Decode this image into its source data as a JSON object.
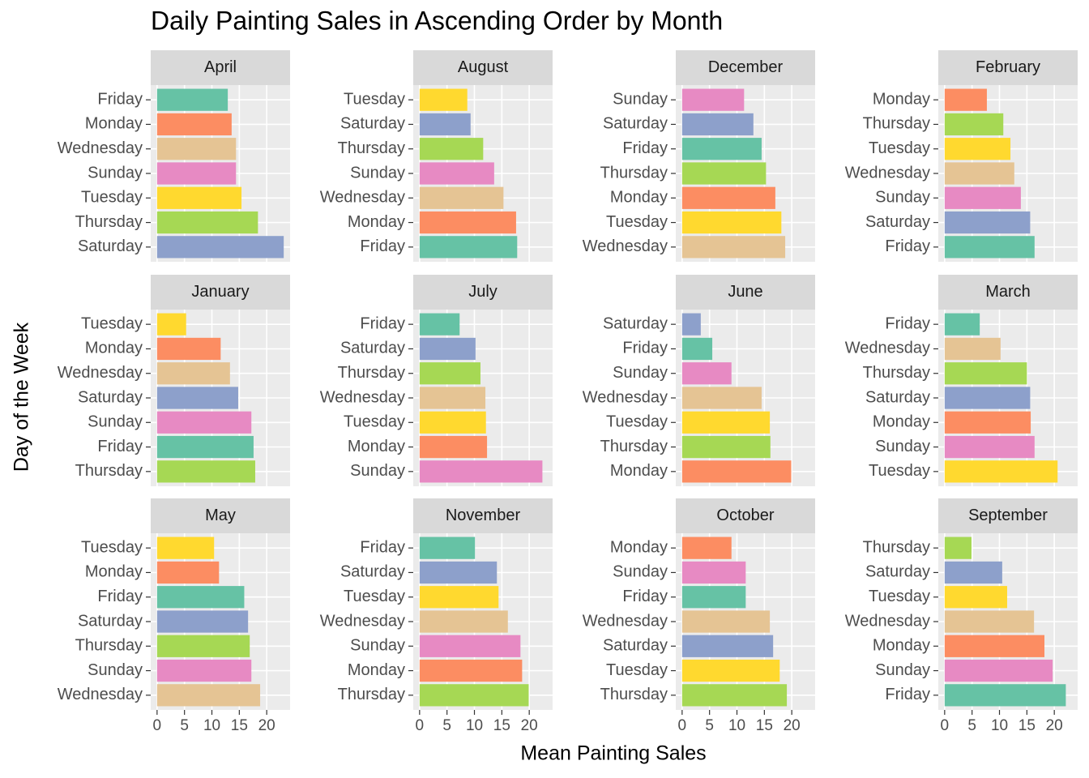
{
  "chart_data": {
    "type": "bar",
    "title": "Daily Painting Sales in Ascending Order by Month",
    "xlabel": "Mean Painting Sales",
    "ylabel": "Day of the Week",
    "xlim": [
      -1.16,
      24.26
    ],
    "xticks": [
      0,
      5,
      10,
      15,
      20
    ],
    "grid": true,
    "facets": [
      {
        "title": "April",
        "categories": [
          "Friday",
          "Monday",
          "Wednesday",
          "Sunday",
          "Tuesday",
          "Thursday",
          "Saturday"
        ],
        "values": [
          12.9,
          13.6,
          14.4,
          14.4,
          15.4,
          18.4,
          23.1
        ],
        "colors": [
          "#66c2a5",
          "#fc8d62",
          "#e5c494",
          "#e78ac3",
          "#ffd92f",
          "#a6d854",
          "#8da0cb"
        ]
      },
      {
        "title": "August",
        "categories": [
          "Tuesday",
          "Saturday",
          "Thursday",
          "Sunday",
          "Wednesday",
          "Monday",
          "Friday"
        ],
        "values": [
          8.7,
          9.3,
          11.6,
          13.6,
          15.3,
          17.6,
          17.8
        ],
        "colors": [
          "#ffd92f",
          "#8da0cb",
          "#a6d854",
          "#e78ac3",
          "#e5c494",
          "#fc8d62",
          "#66c2a5"
        ]
      },
      {
        "title": "December",
        "categories": [
          "Sunday",
          "Saturday",
          "Friday",
          "Thursday",
          "Monday",
          "Tuesday",
          "Wednesday"
        ],
        "values": [
          11.3,
          13.0,
          14.5,
          15.3,
          17.0,
          18.1,
          18.8
        ],
        "colors": [
          "#e78ac3",
          "#8da0cb",
          "#66c2a5",
          "#a6d854",
          "#fc8d62",
          "#ffd92f",
          "#e5c494"
        ]
      },
      {
        "title": "February",
        "categories": [
          "Monday",
          "Thursday",
          "Tuesday",
          "Wednesday",
          "Sunday",
          "Saturday",
          "Friday"
        ],
        "values": [
          7.7,
          10.7,
          12.0,
          12.7,
          13.9,
          15.6,
          16.4
        ],
        "colors": [
          "#fc8d62",
          "#a6d854",
          "#ffd92f",
          "#e5c494",
          "#e78ac3",
          "#8da0cb",
          "#66c2a5"
        ]
      },
      {
        "title": "January",
        "categories": [
          "Tuesday",
          "Monday",
          "Wednesday",
          "Saturday",
          "Sunday",
          "Friday",
          "Thursday"
        ],
        "values": [
          5.3,
          11.6,
          13.3,
          14.8,
          17.2,
          17.6,
          17.9
        ],
        "colors": [
          "#ffd92f",
          "#fc8d62",
          "#e5c494",
          "#8da0cb",
          "#e78ac3",
          "#66c2a5",
          "#a6d854"
        ]
      },
      {
        "title": "July",
        "categories": [
          "Friday",
          "Saturday",
          "Thursday",
          "Wednesday",
          "Tuesday",
          "Monday",
          "Sunday"
        ],
        "values": [
          7.3,
          10.2,
          11.1,
          12.0,
          12.1,
          12.3,
          22.4
        ],
        "colors": [
          "#66c2a5",
          "#8da0cb",
          "#a6d854",
          "#e5c494",
          "#ffd92f",
          "#fc8d62",
          "#e78ac3"
        ]
      },
      {
        "title": "June",
        "categories": [
          "Saturday",
          "Friday",
          "Sunday",
          "Wednesday",
          "Tuesday",
          "Thursday",
          "Monday"
        ],
        "values": [
          3.4,
          5.5,
          9.0,
          14.5,
          16.0,
          16.1,
          19.9
        ],
        "colors": [
          "#8da0cb",
          "#66c2a5",
          "#e78ac3",
          "#e5c494",
          "#ffd92f",
          "#a6d854",
          "#fc8d62"
        ]
      },
      {
        "title": "March",
        "categories": [
          "Friday",
          "Wednesday",
          "Thursday",
          "Saturday",
          "Monday",
          "Sunday",
          "Tuesday"
        ],
        "values": [
          6.4,
          10.2,
          15.0,
          15.6,
          15.7,
          16.4,
          20.6
        ],
        "colors": [
          "#66c2a5",
          "#e5c494",
          "#a6d854",
          "#8da0cb",
          "#fc8d62",
          "#e78ac3",
          "#ffd92f"
        ]
      },
      {
        "title": "May",
        "categories": [
          "Tuesday",
          "Monday",
          "Friday",
          "Saturday",
          "Thursday",
          "Sunday",
          "Wednesday"
        ],
        "values": [
          10.4,
          11.3,
          15.9,
          16.6,
          16.9,
          17.2,
          18.8
        ],
        "colors": [
          "#ffd92f",
          "#fc8d62",
          "#66c2a5",
          "#8da0cb",
          "#a6d854",
          "#e78ac3",
          "#e5c494"
        ]
      },
      {
        "title": "November",
        "categories": [
          "Friday",
          "Saturday",
          "Tuesday",
          "Wednesday",
          "Sunday",
          "Monday",
          "Thursday"
        ],
        "values": [
          10.1,
          14.1,
          14.4,
          16.1,
          18.4,
          18.7,
          19.9
        ],
        "colors": [
          "#66c2a5",
          "#8da0cb",
          "#ffd92f",
          "#e5c494",
          "#e78ac3",
          "#fc8d62",
          "#a6d854"
        ]
      },
      {
        "title": "October",
        "categories": [
          "Monday",
          "Sunday",
          "Friday",
          "Wednesday",
          "Saturday",
          "Tuesday",
          "Thursday"
        ],
        "values": [
          9.0,
          11.6,
          11.6,
          16.0,
          16.6,
          17.8,
          19.1
        ],
        "colors": [
          "#fc8d62",
          "#e78ac3",
          "#66c2a5",
          "#e5c494",
          "#8da0cb",
          "#ffd92f",
          "#a6d854"
        ]
      },
      {
        "title": "September",
        "categories": [
          "Thursday",
          "Saturday",
          "Tuesday",
          "Wednesday",
          "Monday",
          "Sunday",
          "Friday"
        ],
        "values": [
          4.9,
          10.5,
          11.4,
          16.3,
          18.2,
          19.7,
          22.1
        ],
        "colors": [
          "#a6d854",
          "#8da0cb",
          "#ffd92f",
          "#e5c494",
          "#fc8d62",
          "#e78ac3",
          "#66c2a5"
        ]
      }
    ]
  }
}
